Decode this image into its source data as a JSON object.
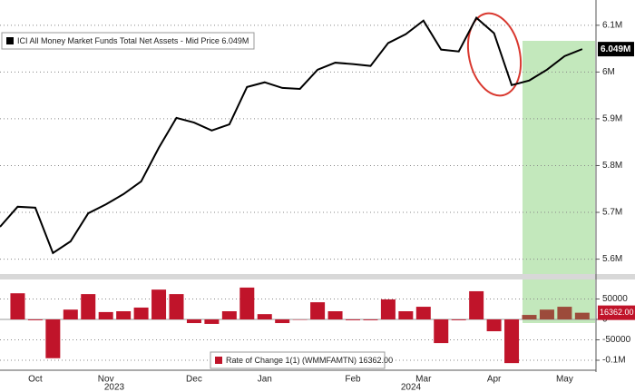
{
  "chart_data": [
    {
      "type": "line",
      "legend": "ICI All Money Market Funds Total Net Assets - Mid Price 6.049M",
      "series": [
        {
          "name": "ICI All Money Market Funds Total Net Assets",
          "color": "#000000",
          "values": [
            5.669,
            5.712,
            5.71,
            5.613,
            5.638,
            5.698,
            5.717,
            5.739,
            5.766,
            5.838,
            5.902,
            5.892,
            5.875,
            5.888,
            5.968,
            5.978,
            5.966,
            5.964,
            6.005,
            6.02,
            6.017,
            6.013,
            6.062,
            6.081,
            6.11,
            6.048,
            6.044,
            6.116,
            6.083,
            5.972,
            5.982,
            6.005,
            6.034,
            6.049
          ],
          "value_labels": [
            null,
            null,
            null,
            null,
            null,
            null,
            null,
            null,
            null,
            null,
            null,
            null,
            null,
            null,
            null,
            null,
            null,
            null,
            null,
            null,
            null,
            null,
            null,
            null,
            null,
            null,
            null,
            null,
            null,
            null,
            null,
            null,
            null,
            "6.049M"
          ]
        }
      ],
      "ylim": [
        5.572,
        6.154
      ],
      "yticks": [
        {
          "value": 6.1,
          "label": "6.1M"
        },
        {
          "value": 6.0,
          "label": "6M"
        },
        {
          "value": 5.9,
          "label": "5.9M"
        },
        {
          "value": 5.8,
          "label": "5.8M"
        },
        {
          "value": 5.7,
          "label": "5.7M"
        },
        {
          "value": 5.6,
          "label": "5.6M"
        }
      ],
      "grid": true
    },
    {
      "type": "bar",
      "legend": "Rate of Change 1(1) (WMMFAMTN) 16362.00",
      "categories": [
        null,
        null,
        "Oct",
        null,
        null,
        null,
        "Nov",
        null,
        null,
        null,
        null,
        "Dec",
        null,
        null,
        null,
        "Jan",
        null,
        null,
        null,
        null,
        "Feb",
        null,
        null,
        null,
        "Mar",
        null,
        null,
        null,
        "Apr",
        null,
        null,
        null,
        "May",
        null
      ],
      "year_labels": [
        "2023",
        "2024"
      ],
      "series": [
        {
          "name": "Rate of Change 1(1) (WMMFAMTN)",
          "color": "#c0142a",
          "recent_color": "#9c4b3b",
          "values": [
            null,
            64000,
            -2000,
            -95000,
            24000,
            62000,
            18000,
            20000,
            29000,
            73000,
            62000,
            -9000,
            -11000,
            20000,
            78000,
            13000,
            -9000,
            -1000,
            42000,
            20000,
            -2000,
            -2000,
            49000,
            20000,
            31000,
            -58000,
            -2000,
            69000,
            -29000,
            -107000,
            11000,
            24000,
            31000,
            16362
          ],
          "value_labels": [
            null,
            null,
            null,
            null,
            null,
            null,
            null,
            null,
            null,
            null,
            null,
            null,
            null,
            null,
            null,
            null,
            null,
            null,
            null,
            null,
            null,
            null,
            null,
            null,
            null,
            null,
            null,
            null,
            null,
            null,
            null,
            null,
            null,
            "16362.00"
          ]
        }
      ],
      "ylim": [
        -117800,
        97800
      ],
      "yticks": [
        50000,
        0,
        -50000,
        {
          "value": -100000,
          "label": "-0.1M"
        }
      ],
      "grid": true
    }
  ]
}
